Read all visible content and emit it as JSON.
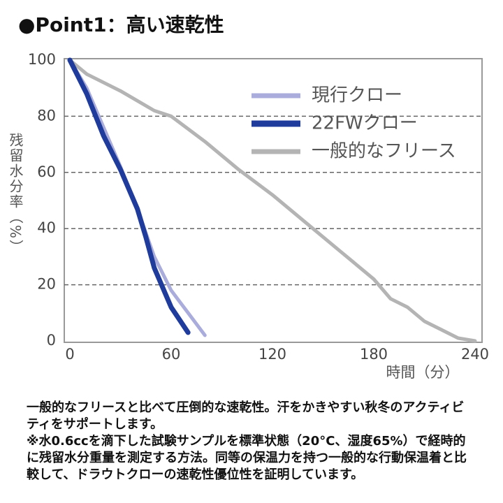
{
  "title": "●Point1：高い速乾性",
  "chart_data": {
    "type": "line",
    "ylabel": "残留水分率（%）",
    "xlabel": "時間（分）",
    "xlim": [
      0,
      240
    ],
    "xticks": [
      0,
      60,
      120,
      180,
      240
    ],
    "ylim": [
      0,
      100
    ],
    "yticks": [
      0,
      20,
      40,
      60,
      80,
      100
    ],
    "grid": true,
    "series": [
      {
        "name": "現行クロー",
        "color": "#aaaddb",
        "x": [
          0,
          10,
          20,
          30,
          40,
          50,
          60,
          70,
          80
        ],
        "values": [
          100,
          90,
          76,
          62,
          47,
          30,
          18,
          10,
          2
        ]
      },
      {
        "name": "22FWクロー",
        "color": "#1f3c9c",
        "x": [
          0,
          10,
          20,
          30,
          40,
          45,
          50,
          60,
          70
        ],
        "values": [
          100,
          88,
          73,
          61,
          47,
          37,
          26,
          12,
          3
        ]
      },
      {
        "name": "一般的なフリース",
        "color": "#b4b4b4",
        "x": [
          0,
          10,
          30,
          50,
          60,
          80,
          100,
          120,
          140,
          160,
          180,
          190,
          200,
          210,
          220,
          230,
          240
        ],
        "values": [
          100,
          95,
          89,
          82,
          80,
          71,
          61,
          52,
          42,
          32,
          22,
          15,
          12,
          7,
          4,
          1,
          0
        ]
      }
    ]
  },
  "description": [
    "一般的なフリースと比べて圧倒的な速乾性。汗をかきやすい秋冬のアクティビティをサポートします。",
    "※水0.6ccを滴下した試験サンプルを標準状態（20°C、湿度65%）で経時的に残留水分重量を測定する方法。同等の保温力を持つ一般的な行動保温着と比較して、ドラウトクローの速乾性優位性を証明しています。"
  ]
}
